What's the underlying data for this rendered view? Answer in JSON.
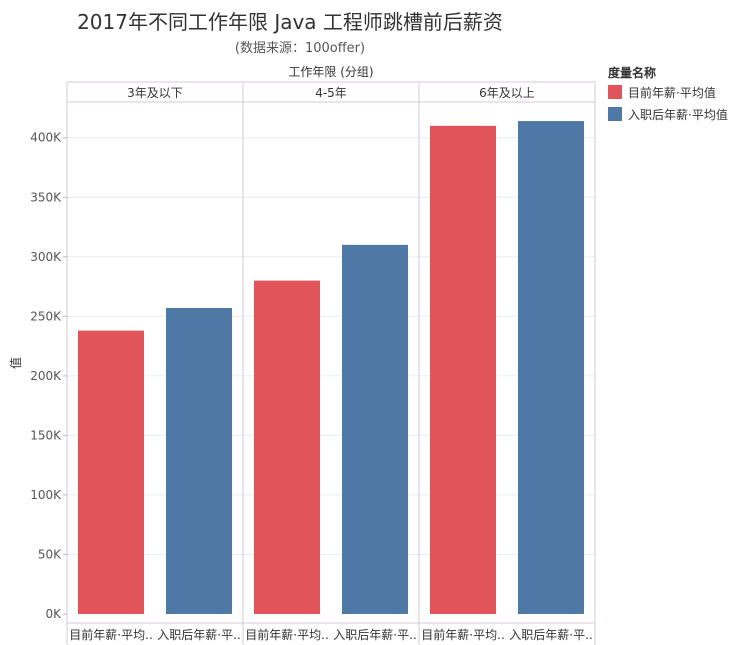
{
  "chart_data": {
    "type": "bar",
    "title": "2017年不同工作年限 Java 工程师跳槽前后薪资",
    "subtitle": "(数据来源：100offer)",
    "facet_label": "工作年限 (分组)",
    "ylabel": "值",
    "ylim": [
      0,
      430000
    ],
    "yticks": [
      0,
      50000,
      100000,
      150000,
      200000,
      250000,
      300000,
      350000,
      400000
    ],
    "ytick_labels": [
      "0K",
      "50K",
      "100K",
      "150K",
      "200K",
      "250K",
      "300K",
      "350K",
      "400K"
    ],
    "groups": [
      {
        "label": "3年及以下",
        "categories": [
          "目前年薪·平均..",
          "入职后年薪·平.."
        ],
        "values": [
          238000,
          257000
        ]
      },
      {
        "label": "4-5年",
        "categories": [
          "目前年薪·平均..",
          "入职后年薪·平.."
        ],
        "values": [
          280000,
          310000
        ]
      },
      {
        "label": "6年及以上",
        "categories": [
          "目前年薪·平均..",
          "入职后年薪·平.."
        ],
        "values": [
          410000,
          414000
        ]
      }
    ],
    "legend": {
      "title": "度量名称",
      "position": "right",
      "items": [
        {
          "name": "目前年薪·平均值",
          "color": "#e0545a"
        },
        {
          "name": "入职后年薪·平均值",
          "color": "#4e79a7"
        }
      ]
    },
    "grid": true
  }
}
